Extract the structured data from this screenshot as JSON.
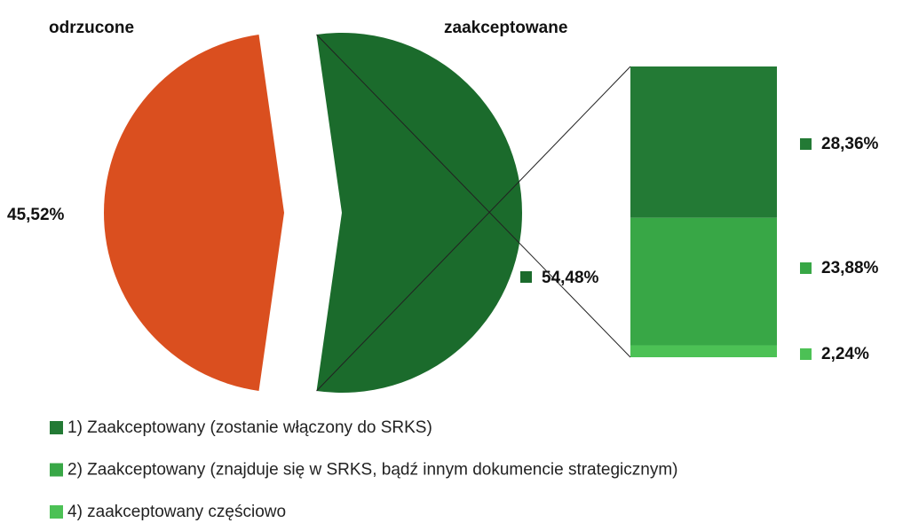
{
  "chart_data": {
    "type": "pie-of-bar",
    "pie": {
      "categories": [
        "odrzucone",
        "zaakceptowane"
      ],
      "values": [
        45.52,
        54.48
      ],
      "value_labels": [
        "45,52%",
        "54,48%"
      ],
      "colors": [
        "#da4f1f",
        "#1b6b2c"
      ]
    },
    "bar": {
      "series": [
        {
          "name": "1) Zaakceptowany (zostanie włączony do SRKS)",
          "color": "#237a35",
          "values": [
            28.36
          ],
          "value_labels": [
            "28,36%"
          ]
        },
        {
          "name": "2) Zaakceptowany (znajduje się w SRKS, bądź innym dokumencie strategicznym)",
          "color": "#38a746",
          "values": [
            23.88
          ],
          "value_labels": [
            "23,88%"
          ]
        },
        {
          "name": "4) zaakceptowany częściowo",
          "color": "#4cc155",
          "values": [
            2.24
          ],
          "value_labels": [
            "2,24%"
          ]
        }
      ]
    }
  }
}
